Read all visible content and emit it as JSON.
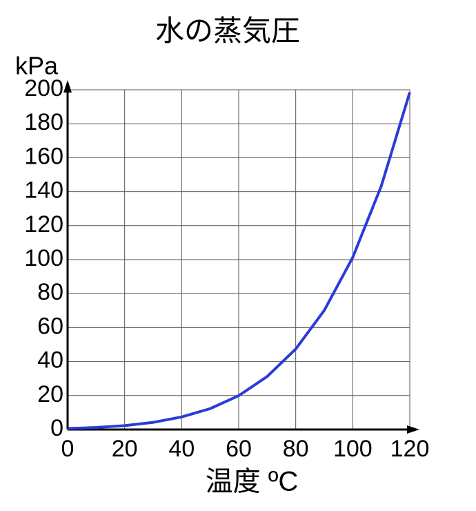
{
  "chart_data": {
    "type": "line",
    "title": "水の蒸気圧",
    "y_label": "kPa",
    "x_label": "温度 ºC",
    "x": [
      0,
      10,
      20,
      30,
      40,
      50,
      60,
      70,
      80,
      90,
      100,
      110,
      120
    ],
    "values": [
      0.6,
      1.2,
      2.3,
      4.2,
      7.4,
      12.3,
      19.9,
      31.2,
      47.4,
      70.1,
      101.3,
      143.3,
      198.5
    ],
    "color": "#2b3bd9",
    "xlim": [
      0,
      120
    ],
    "xticks": [
      0,
      20,
      40,
      60,
      80,
      100,
      120
    ],
    "ylim": [
      0,
      200
    ],
    "yticks": [
      0,
      20,
      40,
      60,
      80,
      100,
      120,
      140,
      160,
      180,
      200
    ],
    "grid": true
  }
}
